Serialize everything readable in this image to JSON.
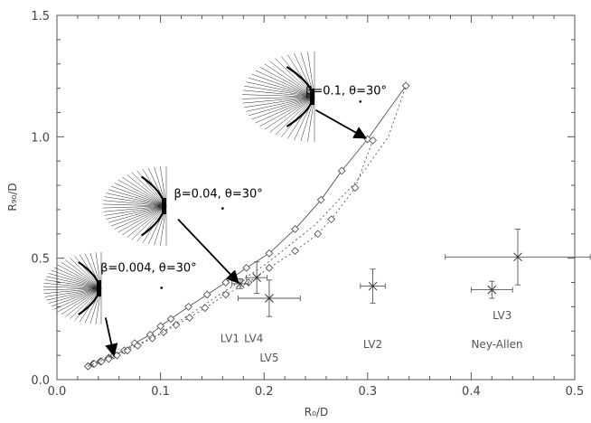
{
  "chart_data": {
    "type": "scatter",
    "xlabel": "R₀/D",
    "ylabel": "R₉₀/D",
    "xlim": [
      0.0,
      0.5
    ],
    "ylim": [
      0.0,
      1.5
    ],
    "x_ticks": [
      "0.0",
      "0.1",
      "0.2",
      "0.3",
      "0.4",
      "0.5"
    ],
    "y_ticks": [
      "0.0",
      "0.5",
      "1.0",
      "1.5"
    ],
    "series": [
      {
        "style": "solid-diamond",
        "points": [
          [
            0.03,
            0.055
          ],
          [
            0.035,
            0.065
          ],
          [
            0.042,
            0.075
          ],
          [
            0.05,
            0.09
          ],
          [
            0.055,
            0.1
          ],
          [
            0.065,
            0.12
          ],
          [
            0.075,
            0.15
          ],
          [
            0.09,
            0.185
          ],
          [
            0.1,
            0.22
          ],
          [
            0.11,
            0.25
          ],
          [
            0.127,
            0.3
          ],
          [
            0.145,
            0.35
          ],
          [
            0.163,
            0.4
          ],
          [
            0.183,
            0.46
          ],
          [
            0.205,
            0.52
          ],
          [
            0.23,
            0.62
          ],
          [
            0.255,
            0.74
          ],
          [
            0.275,
            0.86
          ],
          [
            0.3,
            0.99
          ],
          [
            0.337,
            1.21
          ]
        ]
      },
      {
        "style": "dotted-diamond",
        "points": [
          [
            0.03,
            0.055
          ],
          [
            0.036,
            0.065
          ],
          [
            0.043,
            0.075
          ],
          [
            0.05,
            0.085
          ],
          [
            0.058,
            0.1
          ],
          [
            0.068,
            0.12
          ],
          [
            0.078,
            0.14
          ],
          [
            0.092,
            0.17
          ],
          [
            0.103,
            0.195
          ],
          [
            0.115,
            0.225
          ],
          [
            0.128,
            0.255
          ],
          [
            0.143,
            0.295
          ],
          [
            0.163,
            0.35
          ],
          [
            0.185,
            0.4
          ],
          [
            0.205,
            0.46
          ],
          [
            0.23,
            0.53
          ],
          [
            0.252,
            0.6
          ],
          [
            0.265,
            0.66
          ],
          [
            0.288,
            0.79
          ],
          [
            0.305,
            0.985
          ]
        ]
      },
      {
        "style": "dotted-line",
        "points": [
          [
            0.03,
            0.055
          ],
          [
            0.06,
            0.11
          ],
          [
            0.1,
            0.19
          ],
          [
            0.15,
            0.33
          ],
          [
            0.2,
            0.47
          ],
          [
            0.25,
            0.64
          ],
          [
            0.29,
            0.82
          ],
          [
            0.32,
            1.0
          ],
          [
            0.337,
            1.21
          ]
        ]
      }
    ],
    "objects": [
      {
        "name": "LV1",
        "x": 0.177,
        "y": 0.395,
        "xerr": 0.008,
        "yerr": 0.02
      },
      {
        "name": "LV4",
        "x": 0.193,
        "y": 0.42,
        "xerr": 0.01,
        "yerr": 0.065
      },
      {
        "name": "LV5",
        "x": 0.205,
        "y": 0.335,
        "xerr": 0.03,
        "yerr": 0.075
      },
      {
        "name": "LV2",
        "x": 0.305,
        "y": 0.385,
        "xerr": 0.012,
        "yerr": 0.07
      },
      {
        "name": "Ney-Allen",
        "x": 0.42,
        "y": 0.37,
        "xerr": 0.02,
        "yerr": 0.035
      },
      {
        "name": "LV3",
        "x": 0.445,
        "y": 0.505,
        "xerr": 0.07,
        "yerr": 0.115
      }
    ],
    "object_labels": [
      {
        "text": "LV1",
        "x": 0.167,
        "y": 0.155
      },
      {
        "text": "LV4",
        "x": 0.19,
        "y": 0.155
      },
      {
        "text": "LV5",
        "x": 0.205,
        "y": 0.075
      },
      {
        "text": "LV2",
        "x": 0.305,
        "y": 0.13
      },
      {
        "text": "LV3",
        "x": 0.43,
        "y": 0.25
      },
      {
        "text": "Ney-Allen",
        "x": 0.425,
        "y": 0.13
      }
    ],
    "annotations": [
      {
        "text": "β=0.004, θ=30°",
        "tx": 0.042,
        "ty": 0.445,
        "dot": [
          0.101,
          0.378
        ],
        "arrow_from": [
          0.047,
          0.255
        ],
        "arrow_to": [
          0.055,
          0.1
        ],
        "inset": "inset-small"
      },
      {
        "text": "β=0.04, θ=30°",
        "tx": 0.113,
        "ty": 0.75,
        "dot": [
          0.16,
          0.705
        ],
        "arrow_from": [
          0.117,
          0.66
        ],
        "arrow_to": [
          0.175,
          0.4
        ],
        "inset": "inset-mid"
      },
      {
        "text": "β=0.1, θ=30°",
        "tx": 0.24,
        "ty": 1.175,
        "dot": [
          0.293,
          1.145
        ],
        "arrow_from": [
          0.25,
          1.11
        ],
        "arrow_to": [
          0.298,
          0.995
        ],
        "inset": "inset-large"
      }
    ]
  }
}
